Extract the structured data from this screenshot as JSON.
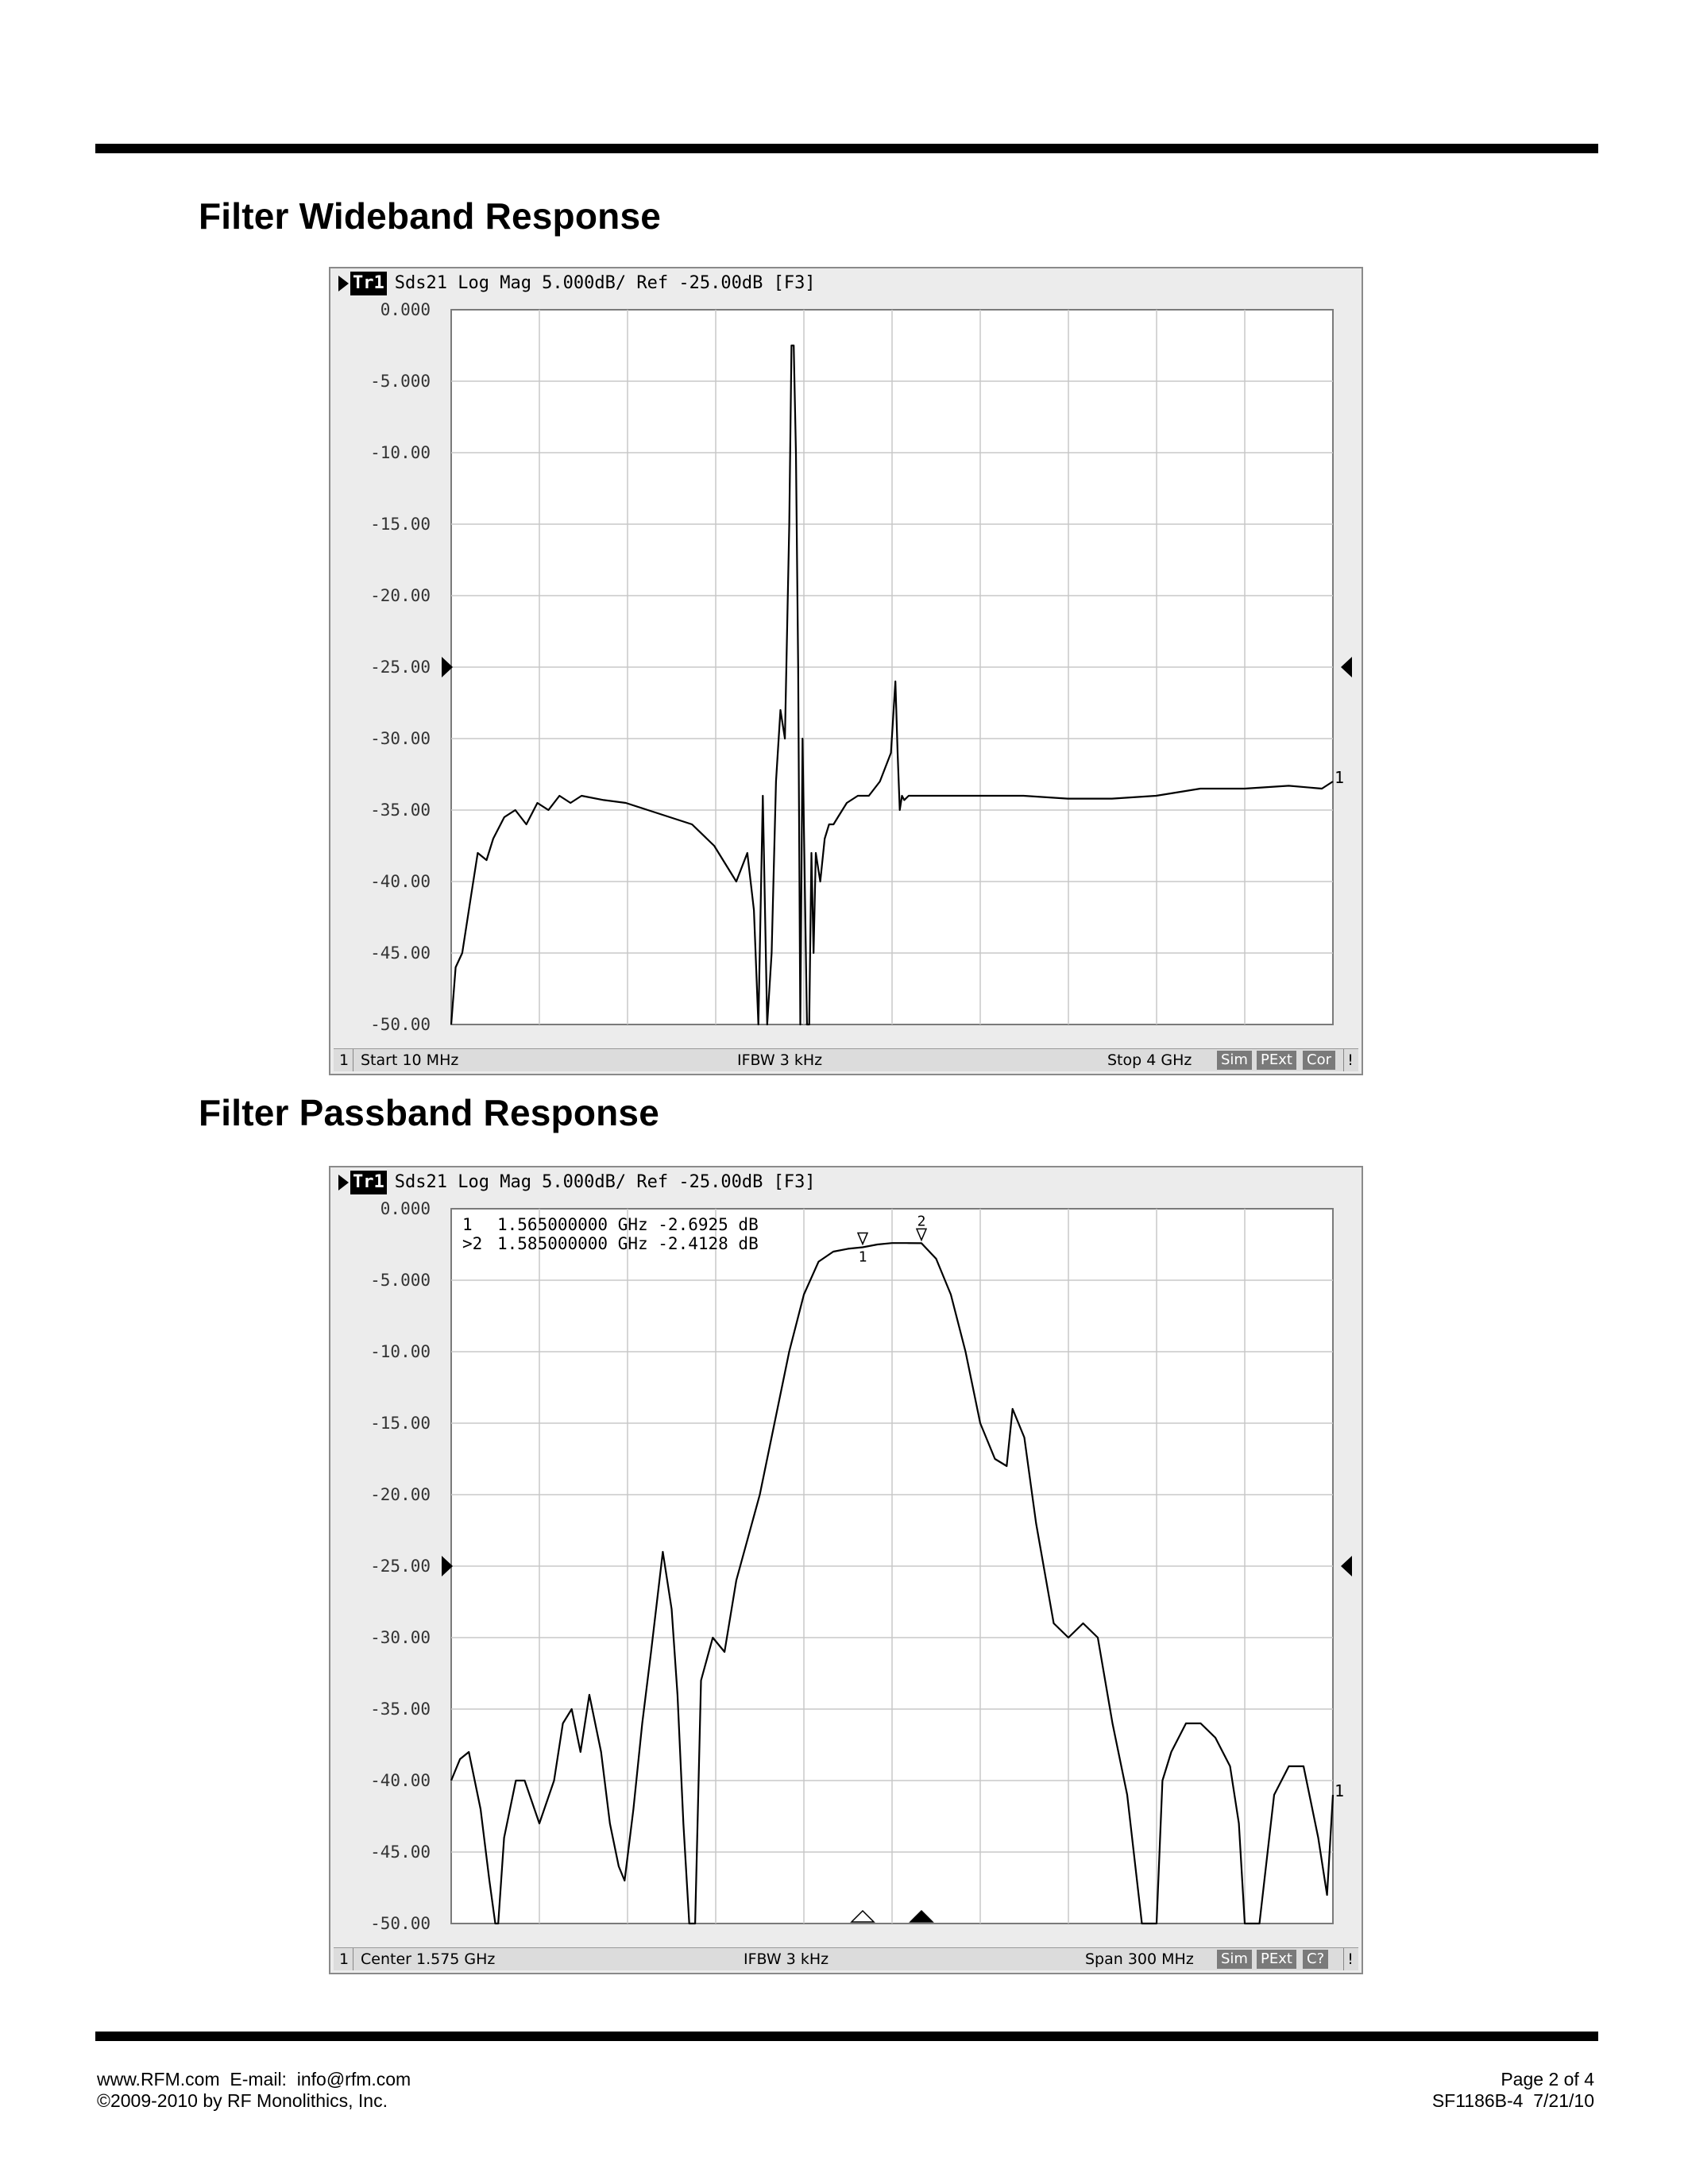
{
  "sections": [
    {
      "title": "Filter Wideband Response"
    },
    {
      "title": "Filter Passband Response"
    }
  ],
  "chart_data": [
    {
      "type": "line",
      "trace_label": "Tr1",
      "header": "Sds21 Log Mag 5.000dB/ Ref -25.00dB [F3]",
      "y_ticks": [
        "0.000",
        "-5.000",
        "-10.00",
        "-15.00",
        "-20.00",
        "-25.00",
        "-30.00",
        "-35.00",
        "-40.00",
        "-45.00",
        "-50.00"
      ],
      "ylim": [
        -50,
        0
      ],
      "xlim": [
        0.01,
        4.0
      ],
      "x_unit": "GHz",
      "ref_level": -25,
      "grid": true,
      "end_marker_label": "1",
      "status": {
        "channel": "1",
        "left": "Start 10 MHz",
        "center": "IFBW 3 kHz",
        "right": "Stop 4 GHz",
        "buttons": [
          "Sim",
          "PExt",
          "Cor"
        ],
        "flag": "!"
      },
      "series": [
        {
          "x": [
            0.01,
            0.03,
            0.06,
            0.1,
            0.13,
            0.17,
            0.2,
            0.25,
            0.3,
            0.35,
            0.4,
            0.45,
            0.5,
            0.55,
            0.6,
            0.7,
            0.8,
            0.9,
            1.0,
            1.1,
            1.2,
            1.3,
            1.35,
            1.38,
            1.4,
            1.42,
            1.44,
            1.46,
            1.48,
            1.5,
            1.52,
            1.54,
            1.55,
            1.56,
            1.57,
            1.58,
            1.59,
            1.6,
            1.62,
            1.63,
            1.64,
            1.65,
            1.66,
            1.68,
            1.7,
            1.72,
            1.74,
            1.76,
            1.78,
            1.8,
            1.85,
            1.9,
            1.95,
            2.0,
            2.02,
            2.03,
            2.04,
            2.05,
            2.06,
            2.08,
            2.1,
            2.2,
            2.4,
            2.6,
            2.8,
            3.0,
            3.2,
            3.4,
            3.6,
            3.8,
            3.95,
            4.0
          ],
          "y": [
            -50,
            -46,
            -45,
            -41,
            -38,
            -38.5,
            -37,
            -35.5,
            -35,
            -36,
            -34.5,
            -35,
            -34,
            -34.5,
            -34,
            -34.3,
            -34.5,
            -35,
            -35.5,
            -36,
            -37.5,
            -40,
            -38,
            -42,
            -50,
            -34,
            -50,
            -45,
            -33,
            -28,
            -30,
            -15,
            -2.5,
            -2.5,
            -10,
            -25,
            -50,
            -30,
            -50,
            -50,
            -38,
            -45,
            -38,
            -40,
            -37,
            -36,
            -36,
            -35.5,
            -35,
            -34.5,
            -34,
            -34,
            -33,
            -31,
            -26,
            -31,
            -35,
            -34,
            -34.3,
            -34,
            -34,
            -34,
            -34,
            -34,
            -34.2,
            -34.2,
            -34,
            -33.5,
            -33.5,
            -33.3,
            -33.5,
            -33
          ]
        }
      ]
    },
    {
      "type": "line",
      "trace_label": "Tr1",
      "header": "Sds21 Log Mag 5.000dB/ Ref -25.00dB [F3]",
      "y_ticks": [
        "0.000",
        "-5.000",
        "-10.00",
        "-15.00",
        "-20.00",
        "-25.00",
        "-30.00",
        "-35.00",
        "-40.00",
        "-45.00",
        "-50.00"
      ],
      "ylim": [
        -50,
        0
      ],
      "xlim": [
        1.425,
        1.725
      ],
      "x_unit": "GHz",
      "ref_level": -25,
      "grid": true,
      "end_marker_label": "1",
      "markers": [
        {
          "label": "1",
          "active": false,
          "freq": "1.565000000 GHz",
          "value": "-2.6925 dB",
          "x": 1.565,
          "y": -2.6925
        },
        {
          "label": "2",
          "active": true,
          "freq": "1.585000000 GHz",
          "value": "-2.4128 dB",
          "x": 1.585,
          "y": -2.4128
        }
      ],
      "marker_table": [
        {
          "prefix": " 1",
          "text": "1.565000000 GHz -2.6925 dB"
        },
        {
          "prefix": ">2",
          "text": "1.585000000 GHz -2.4128 dB"
        }
      ],
      "status": {
        "channel": "1",
        "left": "Center 1.575 GHz",
        "center": "IFBW 3 kHz",
        "right": "Span 300 MHz",
        "buttons": [
          "Sim",
          "PExt",
          "C?"
        ],
        "flag": "!"
      },
      "series": [
        {
          "x": [
            1.425,
            1.428,
            1.431,
            1.435,
            1.438,
            1.44,
            1.441,
            1.443,
            1.447,
            1.45,
            1.455,
            1.46,
            1.463,
            1.466,
            1.469,
            1.472,
            1.476,
            1.479,
            1.482,
            1.484,
            1.487,
            1.49,
            1.493,
            1.497,
            1.5,
            1.502,
            1.504,
            1.506,
            1.508,
            1.51,
            1.514,
            1.518,
            1.522,
            1.526,
            1.53,
            1.535,
            1.54,
            1.545,
            1.55,
            1.555,
            1.56,
            1.565,
            1.57,
            1.575,
            1.58,
            1.585,
            1.59,
            1.595,
            1.6,
            1.605,
            1.61,
            1.614,
            1.616,
            1.62,
            1.624,
            1.63,
            1.635,
            1.64,
            1.645,
            1.65,
            1.655,
            1.66,
            1.663,
            1.665,
            1.667,
            1.67,
            1.675,
            1.68,
            1.685,
            1.69,
            1.693,
            1.695,
            1.697,
            1.7,
            1.705,
            1.71,
            1.715,
            1.72,
            1.723,
            1.725
          ],
          "y": [
            -40,
            -38.5,
            -38,
            -42,
            -47,
            -50,
            -50,
            -44,
            -40,
            -40,
            -43,
            -40,
            -36,
            -35,
            -38,
            -34,
            -38,
            -43,
            -46,
            -47,
            -42,
            -36,
            -31,
            -24,
            -28,
            -34,
            -43,
            -50,
            -50,
            -33,
            -30,
            -31,
            -26,
            -23,
            -20,
            -15,
            -10,
            -6,
            -3.7,
            -3,
            -2.8,
            -2.6925,
            -2.5,
            -2.4,
            -2.4,
            -2.4128,
            -3.5,
            -6,
            -10,
            -15,
            -17.5,
            -18,
            -14,
            -16,
            -22,
            -29,
            -30,
            -29,
            -30,
            -36,
            -41,
            -50,
            -50,
            -50,
            -40,
            -38,
            -36,
            -36,
            -37,
            -39,
            -43,
            -50,
            -50,
            -50,
            -41,
            -39,
            -39,
            -44,
            -48,
            -41
          ]
        }
      ]
    }
  ],
  "footer": {
    "line1_left": "www.RFM.com  E-mail:  info@rfm.com",
    "line2_left": "©2009-2010 by RF Monolithics, Inc.",
    "line1_right": "Page 2 of 4",
    "line2_right": "SF1186B-4  7/21/10"
  }
}
